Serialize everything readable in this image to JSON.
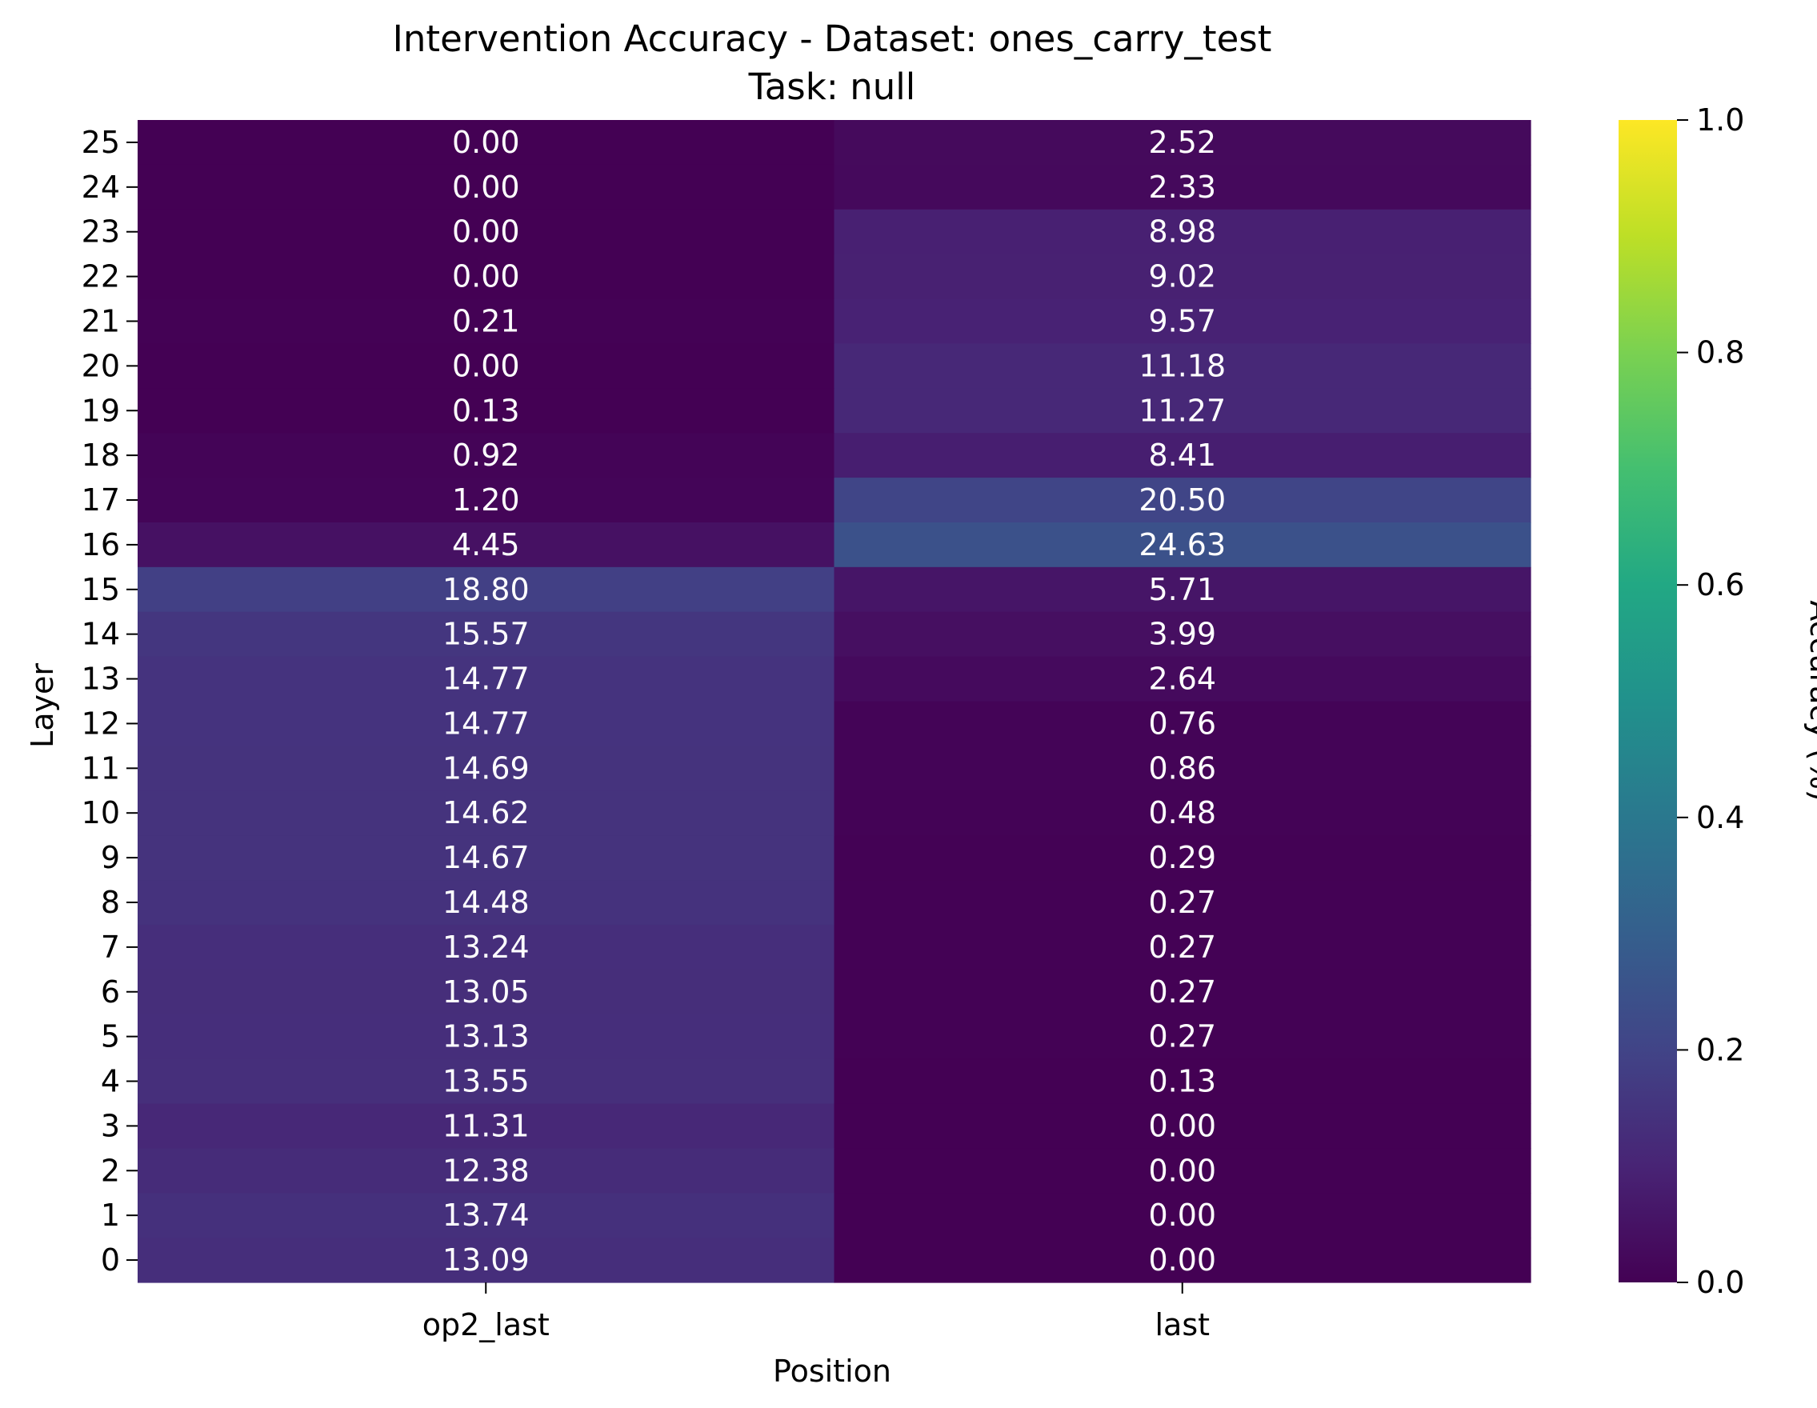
{
  "chart_data": {
    "type": "heatmap",
    "title": "Intervention Accuracy - Dataset: ones_carry_test",
    "subtitle": "Task: null",
    "xlabel": "Position",
    "ylabel": "Layer",
    "x_categories": [
      "op2_last",
      "last"
    ],
    "y_categories": [
      "25",
      "24",
      "23",
      "22",
      "21",
      "20",
      "19",
      "18",
      "17",
      "16",
      "15",
      "14",
      "13",
      "12",
      "11",
      "10",
      "9",
      "8",
      "7",
      "6",
      "5",
      "4",
      "3",
      "2",
      "1",
      "0"
    ],
    "values": [
      [
        0.0,
        2.52
      ],
      [
        0.0,
        2.33
      ],
      [
        0.0,
        8.98
      ],
      [
        0.0,
        9.02
      ],
      [
        0.21,
        9.57
      ],
      [
        0.0,
        11.18
      ],
      [
        0.13,
        11.27
      ],
      [
        0.92,
        8.41
      ],
      [
        1.2,
        20.5
      ],
      [
        4.45,
        24.63
      ],
      [
        18.8,
        5.71
      ],
      [
        15.57,
        3.99
      ],
      [
        14.77,
        2.64
      ],
      [
        14.77,
        0.76
      ],
      [
        14.69,
        0.86
      ],
      [
        14.62,
        0.48
      ],
      [
        14.67,
        0.29
      ],
      [
        14.48,
        0.27
      ],
      [
        13.24,
        0.27
      ],
      [
        13.05,
        0.27
      ],
      [
        13.13,
        0.27
      ],
      [
        13.55,
        0.13
      ],
      [
        11.31,
        0.0
      ],
      [
        12.38,
        0.0
      ],
      [
        13.74,
        0.0
      ],
      [
        13.09,
        0.0
      ]
    ],
    "colorbar": {
      "label": "Accuracy (%)",
      "range": [
        0,
        1
      ],
      "tick_labels": [
        "0.0",
        "0.2",
        "0.4",
        "0.6",
        "0.8",
        "1.0"
      ],
      "colormap": "viridis"
    },
    "grid": false,
    "legend": "colorbar-right"
  }
}
